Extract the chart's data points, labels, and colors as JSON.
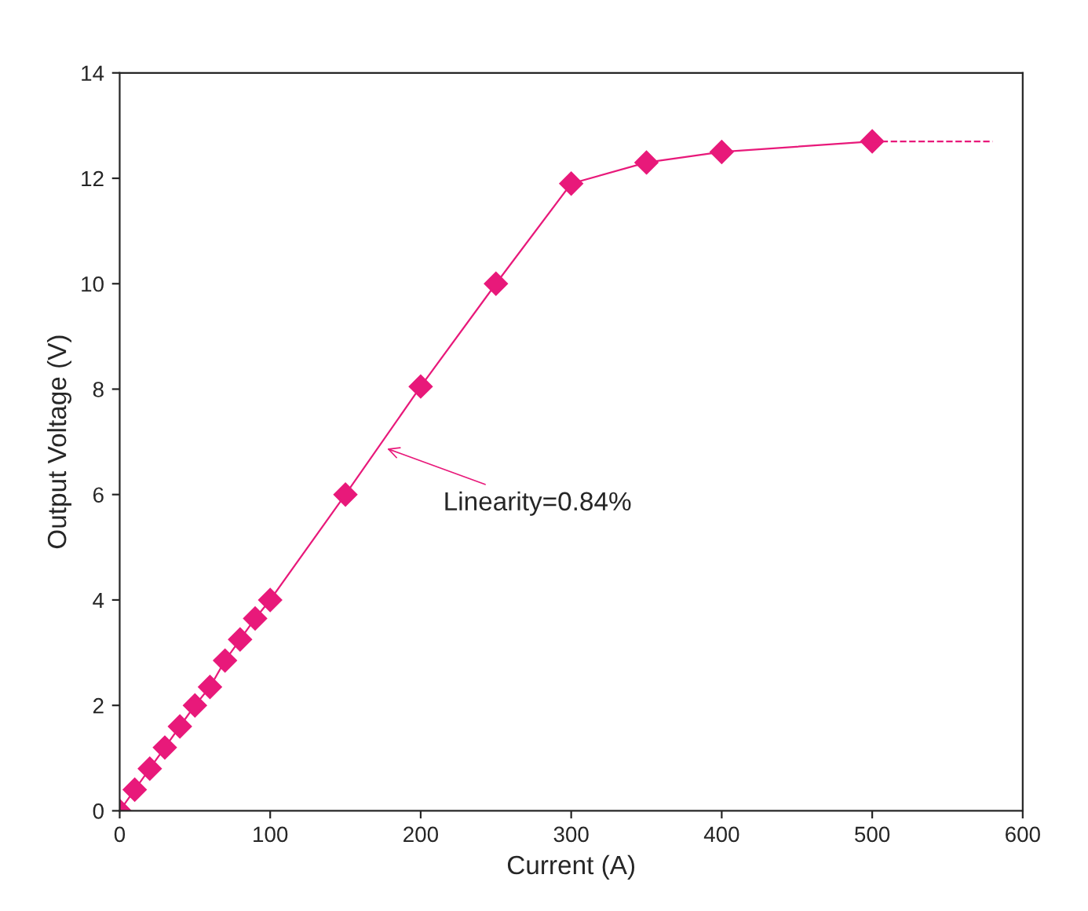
{
  "chart_data": {
    "type": "line",
    "xlabel": "Current (A)",
    "ylabel": "Output Voltage (V)",
    "xlim": [
      0,
      600
    ],
    "ylim": [
      0,
      14
    ],
    "xticks": [
      0,
      100,
      200,
      300,
      400,
      500,
      600
    ],
    "yticks": [
      0,
      2,
      4,
      6,
      8,
      10,
      12,
      14
    ],
    "grid": false,
    "series": [
      {
        "color": "#e8197a",
        "marker": "diamond",
        "line_style": "solid",
        "x": [
          0,
          10,
          20,
          30,
          40,
          50,
          60,
          70,
          80,
          90,
          100,
          150,
          200,
          250,
          300,
          350,
          400,
          500
        ],
        "values": [
          0,
          0.4,
          0.8,
          1.2,
          1.6,
          2.0,
          2.35,
          2.85,
          3.25,
          3.65,
          4.0,
          6.0,
          8.05,
          10.0,
          11.9,
          12.3,
          12.5,
          12.7
        ]
      },
      {
        "color": "#e8197a",
        "marker": "none",
        "line_style": "dashed",
        "x": [
          500,
          580
        ],
        "values": [
          12.7,
          12.7
        ]
      }
    ],
    "annotations": [
      {
        "text": "Linearity=0.84%",
        "x": 175,
        "y": 6.9
      }
    ]
  }
}
